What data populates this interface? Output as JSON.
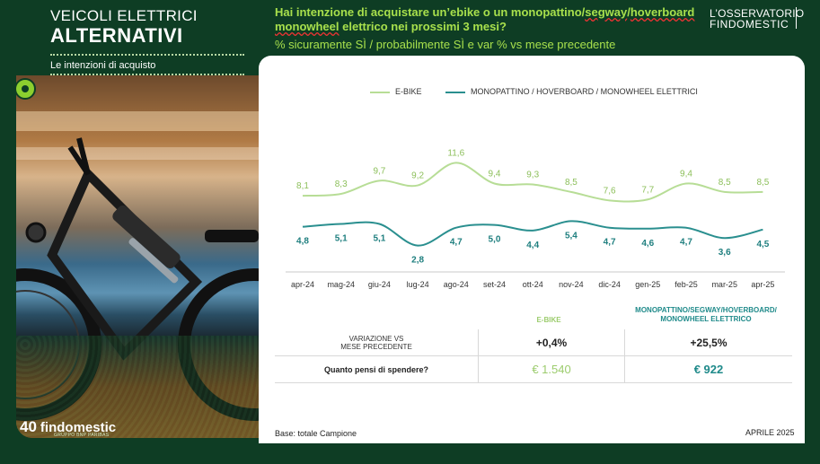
{
  "header": {
    "title_line1": "VEICOLI ELETTRICI",
    "title_line2": "ALTERNATIVI",
    "subtitle": "Le intenzioni di acquisto",
    "question_part1": "Hai intenzione di acquistare un’ebike o un monopattino/",
    "question_segway": "segway",
    "question_slash": "/",
    "question_hoverboard": "hoverboard",
    "question_part2": "monowheel",
    "question_part3": " elettrico nei prossimi 3 mesi?",
    "metric": "% sicuramente SÌ / probabilmente SÌ e var % vs mese precedente",
    "brand_line1": "L’OSSERVATORIO",
    "brand_line2": "FINDOMESTIC"
  },
  "footer": {
    "logo_number": "40",
    "logo_name": "findomestic",
    "logo_sub": "GRUPPO BNP PARIBAS",
    "base": "Base: totale Campione",
    "date": "APRILE 2025"
  },
  "colors": {
    "ebike": "#b7dd96",
    "mono": "#2a8f8f",
    "background": "#0e3d24",
    "accent": "#a8e04c"
  },
  "chart_data": {
    "type": "line",
    "categories": [
      "apr-24",
      "mag-24",
      "giu-24",
      "lug-24",
      "ago-24",
      "set-24",
      "ott-24",
      "nov-24",
      "dic-24",
      "gen-25",
      "feb-25",
      "mar-25",
      "apr-25"
    ],
    "series": [
      {
        "name": "E-BIKE",
        "values": [
          8.1,
          8.3,
          9.7,
          9.2,
          11.6,
          9.4,
          9.3,
          8.5,
          7.6,
          7.7,
          9.4,
          8.5,
          8.5
        ],
        "labels": [
          "8,1",
          "8,3",
          "9,7",
          "9,2",
          "11,6",
          "9,4",
          "9,3",
          "8,5",
          "7,6",
          "7,7",
          "9,4",
          "8,5",
          "8,5"
        ]
      },
      {
        "name": "MONOPATTINO / HOVERBOARD / MONOWHEEL ELETTRICI",
        "values": [
          4.8,
          5.1,
          5.1,
          2.8,
          4.7,
          5.0,
          4.4,
          5.4,
          4.7,
          4.6,
          4.7,
          3.6,
          4.5
        ],
        "labels": [
          "4,8",
          "5,1",
          "5,1",
          "2,8",
          "4,7",
          "5,0",
          "4,4",
          "5,4",
          "4,7",
          "4,6",
          "4,7",
          "3,6",
          "4,5"
        ]
      }
    ],
    "legend": "top-center",
    "grid": false
  },
  "table": {
    "col1_header": "E-BIKE",
    "col2_header_line1": "MONOPATTINO/SEGWAY/HOVERBOARD/",
    "col2_header_line2": "MONOWHEEL ELETTRICO",
    "row1_label_line1": "VARIAZIONE VS",
    "row1_label_line2": "MESE PRECEDENTE",
    "row1_col1": "+0,4%",
    "row1_col2": "+25,5%",
    "row2_label": "Quanto pensi di spendere?",
    "row2_col1": "€ 1.540",
    "row2_col2": "€ 922"
  }
}
